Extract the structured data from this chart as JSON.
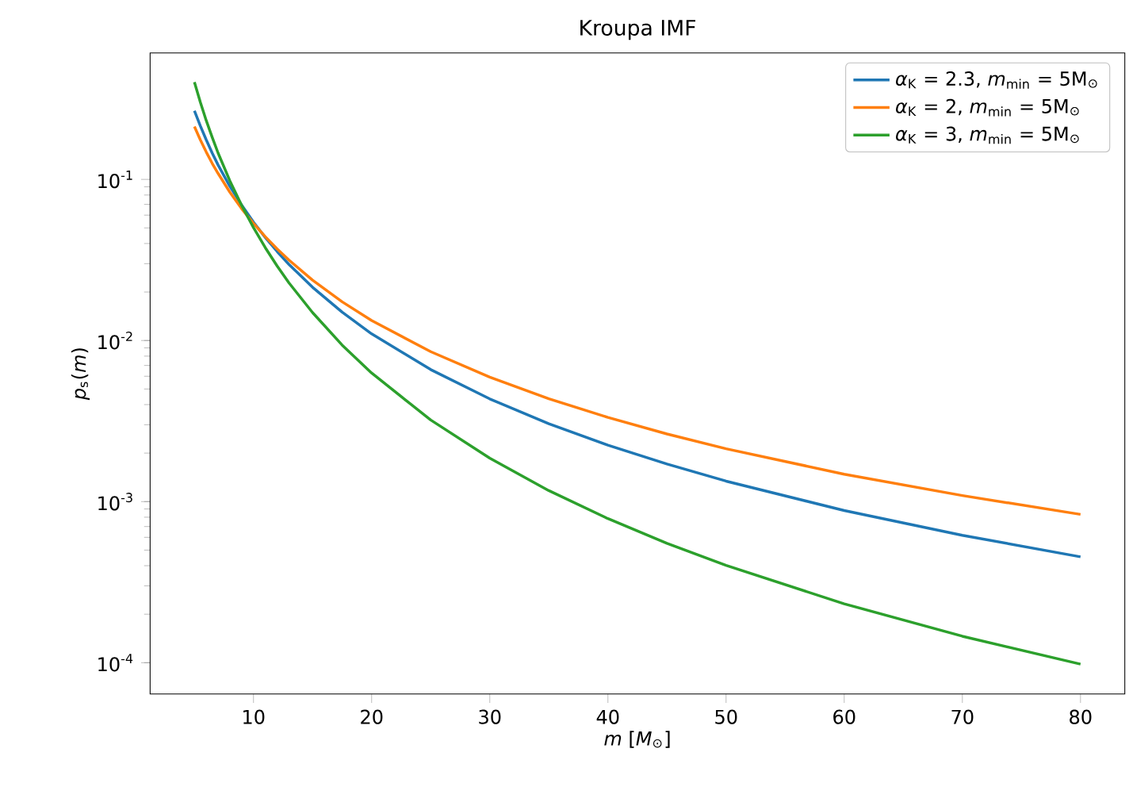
{
  "chart_data": {
    "type": "line",
    "title": "Kroupa IMF",
    "xlabel": "*m* [*M*$_{⊙}$]",
    "ylabel": "*p*$_{s}$(*m*)",
    "x": [
      5,
      5.5,
      6,
      6.5,
      7,
      8,
      9,
      10,
      11,
      12,
      13,
      15,
      17.5,
      20,
      25,
      30,
      35,
      40,
      45,
      50,
      60,
      70,
      80
    ],
    "series": [
      {
        "name": "*α*$_{K}$ = 2.3, *m*$_{min}$ = 5M$_{⊙}$",
        "color": "#1f77b4",
        "values": [
          0.267,
          0.215,
          0.176,
          0.146,
          0.123,
          0.0906,
          0.0692,
          0.0543,
          0.0436,
          0.0357,
          0.0297,
          0.0214,
          0.015,
          0.011,
          0.0066,
          0.00434,
          0.00304,
          0.00224,
          0.00171,
          0.00134,
          0.00088,
          0.000618,
          0.000454
        ]
      },
      {
        "name": "*α*$_{K}$ = 2, *m*$_{min}$ = 5M$_{⊙}$",
        "color": "#ff7f0e",
        "values": [
          0.213,
          0.176,
          0.148,
          0.126,
          0.109,
          0.0833,
          0.0658,
          0.0533,
          0.0441,
          0.037,
          0.0316,
          0.0237,
          0.0174,
          0.0133,
          0.00853,
          0.00593,
          0.00435,
          0.00333,
          0.00263,
          0.00213,
          0.00148,
          0.00109,
          0.000833
        ]
      },
      {
        "name": "*α*$_{K}$ = 3, *m*$_{min}$ = 5M$_{⊙}$",
        "color": "#2ca02c",
        "values": [
          0.402,
          0.302,
          0.232,
          0.183,
          0.146,
          0.098,
          0.0689,
          0.0502,
          0.0377,
          0.029,
          0.0228,
          0.0149,
          0.00937,
          0.00628,
          0.00321,
          0.00186,
          0.00117,
          0.000784,
          0.000551,
          0.000402,
          0.000232,
          0.000146,
          9.8e-05
        ]
      }
    ],
    "xlim": [
      1.25,
      83.75
    ],
    "ylim": [
      6.4e-05,
      0.61
    ],
    "xticks": [
      10,
      20,
      30,
      40,
      50,
      60,
      70,
      80
    ],
    "yticks": [
      {
        "value": 0.0001,
        "label": "10$^{-4}$"
      },
      {
        "value": 0.001,
        "label": "10$^{-3}$"
      },
      {
        "value": 0.01,
        "label": "10$^{-2}$"
      },
      {
        "value": 0.1,
        "label": "10$^{-1}$"
      }
    ],
    "log": "y",
    "legend": "top right",
    "grid": false
  }
}
